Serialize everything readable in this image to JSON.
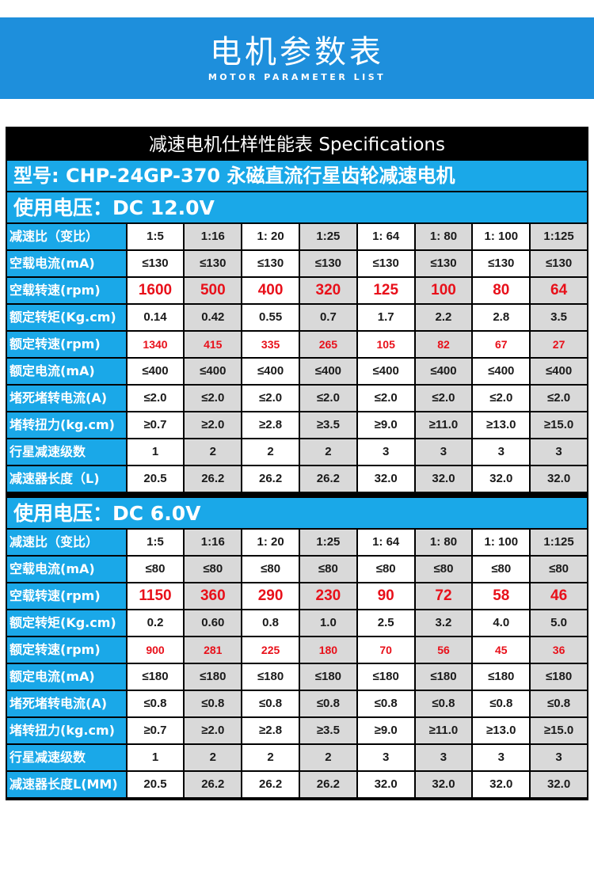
{
  "banner": {
    "title": "电机参数表",
    "subtitle": "MOTOR PARAMETER LIST",
    "color": "#1e8fdc"
  },
  "spec_header": "减速电机仕样性能表 Specifications",
  "model": "型号: CHP-24GP-370 永磁直流行星齿轮减速电机",
  "colors": {
    "label_bg": "#1aa8e8",
    "highlight_text": "#e8101a",
    "alt_cell": "#d9d9d9"
  },
  "sections": [
    {
      "voltage": "使用电压：DC 12.0V",
      "rows": [
        {
          "label": "减速比（变比）",
          "style": "normal",
          "values": [
            "1:5",
            "1:16",
            "1: 20",
            "1:25",
            "1: 64",
            "1: 80",
            "1: 100",
            "1:125"
          ]
        },
        {
          "label": "空载电流(mA)",
          "style": "normal",
          "values": [
            "≤130",
            "≤130",
            "≤130",
            "≤130",
            "≤130",
            "≤130",
            "≤130",
            "≤130"
          ]
        },
        {
          "label": "空载转速(rpm)",
          "style": "big",
          "values": [
            "1600",
            "500",
            "400",
            "320",
            "125",
            "100",
            "80",
            "64"
          ]
        },
        {
          "label": "额定转矩(Kg.cm)",
          "style": "normal",
          "values": [
            "0.14",
            "0.42",
            "0.55",
            "0.7",
            "1.7",
            "2.2",
            "2.8",
            "3.5"
          ]
        },
        {
          "label": "额定转速(rpm)",
          "style": "red",
          "values": [
            "1340",
            "415",
            "335",
            "265",
            "105",
            "82",
            "67",
            "27"
          ]
        },
        {
          "label": "额定电流(mA)",
          "style": "normal",
          "values": [
            "≤400",
            "≤400",
            "≤400",
            "≤400",
            "≤400",
            "≤400",
            "≤400",
            "≤400"
          ]
        },
        {
          "label": "堵死堵转电流(A)",
          "style": "normal",
          "values": [
            "≤2.0",
            "≤2.0",
            "≤2.0",
            "≤2.0",
            "≤2.0",
            "≤2.0",
            "≤2.0",
            "≤2.0"
          ]
        },
        {
          "label": "堵转扭力(kg.cm)",
          "style": "normal",
          "values": [
            "≥0.7",
            "≥2.0",
            "≥2.8",
            "≥3.5",
            "≥9.0",
            "≥11.0",
            "≥13.0",
            "≥15.0"
          ]
        },
        {
          "label": "行星减速级数",
          "style": "normal",
          "values": [
            "1",
            "2",
            "2",
            "2",
            "3",
            "3",
            "3",
            "3"
          ]
        },
        {
          "label": "减速器长度（L)",
          "style": "normal",
          "values": [
            "20.5",
            "26.2",
            "26.2",
            "26.2",
            "32.0",
            "32.0",
            "32.0",
            "32.0"
          ]
        }
      ]
    },
    {
      "voltage": "使用电压：DC 6.0V",
      "rows": [
        {
          "label": "减速比（变比）",
          "style": "normal",
          "values": [
            "1:5",
            "1:16",
            "1: 20",
            "1:25",
            "1: 64",
            "1: 80",
            "1: 100",
            "1:125"
          ]
        },
        {
          "label": "空载电流(mA)",
          "style": "normal",
          "values": [
            "≤80",
            "≤80",
            "≤80",
            "≤80",
            "≤80",
            "≤80",
            "≤80",
            "≤80"
          ]
        },
        {
          "label": "空载转速(rpm)",
          "style": "big",
          "values": [
            "1150",
            "360",
            "290",
            "230",
            "90",
            "72",
            "58",
            "46"
          ]
        },
        {
          "label": "额定转矩(Kg.cm)",
          "style": "normal",
          "values": [
            "0.2",
            "0.60",
            "0.8",
            "1.0",
            "2.5",
            "3.2",
            "4.0",
            "5.0"
          ]
        },
        {
          "label": "额定转速(rpm)",
          "style": "red",
          "values": [
            "900",
            "281",
            "225",
            "180",
            "70",
            "56",
            "45",
            "36"
          ]
        },
        {
          "label": "额定电流(mA)",
          "style": "normal",
          "values": [
            "≤180",
            "≤180",
            "≤180",
            "≤180",
            "≤180",
            "≤180",
            "≤180",
            "≤180"
          ]
        },
        {
          "label": "堵死堵转电流(A)",
          "style": "normal",
          "values": [
            "≤0.8",
            "≤0.8",
            "≤0.8",
            "≤0.8",
            "≤0.8",
            "≤0.8",
            "≤0.8",
            "≤0.8"
          ]
        },
        {
          "label": "堵转扭力(kg.cm)",
          "style": "normal",
          "values": [
            "≥0.7",
            "≥2.0",
            "≥2.8",
            "≥3.5",
            "≥9.0",
            "≥11.0",
            "≥13.0",
            "≥15.0"
          ]
        },
        {
          "label": "行星减速级数",
          "style": "normal",
          "values": [
            "1",
            "2",
            "2",
            "2",
            "3",
            "3",
            "3",
            "3"
          ]
        },
        {
          "label": "减速器长度L(MM)",
          "style": "normal",
          "values": [
            "20.5",
            "26.2",
            "26.2",
            "26.2",
            "32.0",
            "32.0",
            "32.0",
            "32.0"
          ]
        }
      ]
    }
  ]
}
